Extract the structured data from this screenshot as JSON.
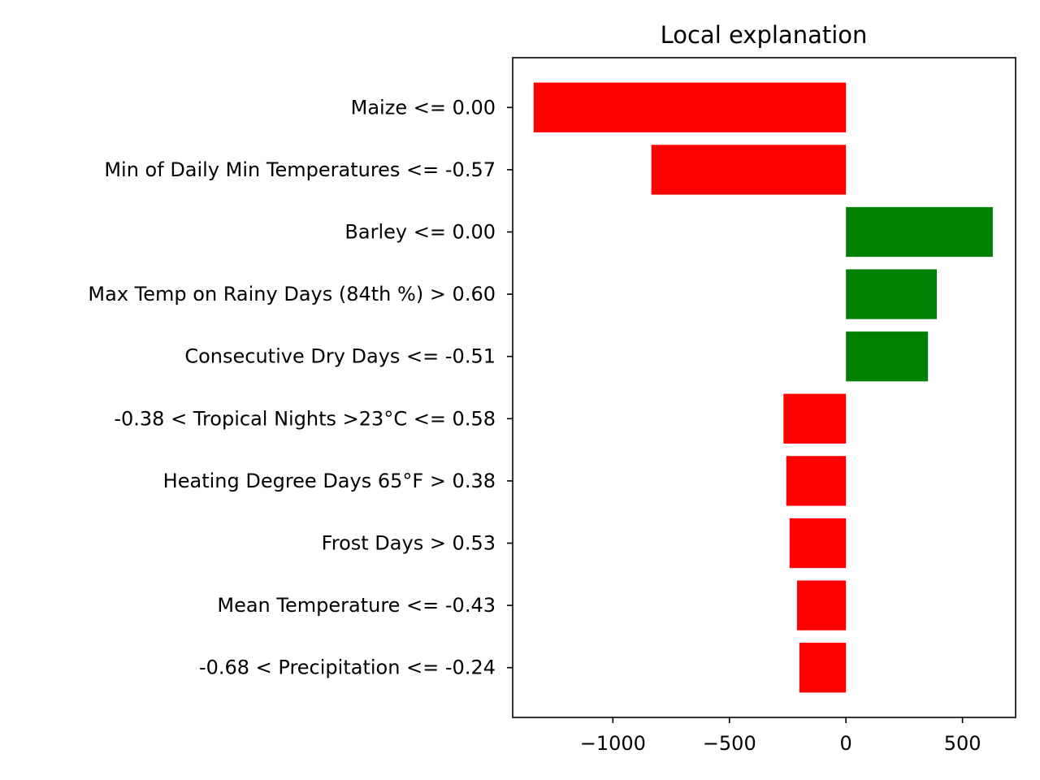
{
  "chart_data": {
    "type": "bar",
    "orientation": "horizontal",
    "title": "Local explanation",
    "xlabel": "",
    "ylabel": "",
    "xlim": [
      -1430,
      728
    ],
    "xticks": [
      -1000,
      -500,
      0,
      500
    ],
    "xtick_labels": [
      "−1000",
      "−500",
      "0",
      "500"
    ],
    "grid": false,
    "legend": "none",
    "positive_color": "#008000",
    "negative_color": "#ff0000",
    "categories": [
      "Maize <= 0.00",
      "Min of Daily Min Temperatures <= -0.57",
      "Barley <= 0.00",
      "Max Temp on Rainy Days (84th %) > 0.60",
      "Consecutive Dry Days <= -0.51",
      "-0.38 < Tropical Nights >23°C <= 0.58",
      "Heating Degree Days 65°F > 0.38",
      "Frost Days > 0.53",
      "Mean Temperature <= -0.43",
      "-0.68 < Precipitation <= -0.24"
    ],
    "values": [
      -1340,
      -835,
      630,
      390,
      352,
      -268,
      -256,
      -242,
      -210,
      -200
    ]
  }
}
